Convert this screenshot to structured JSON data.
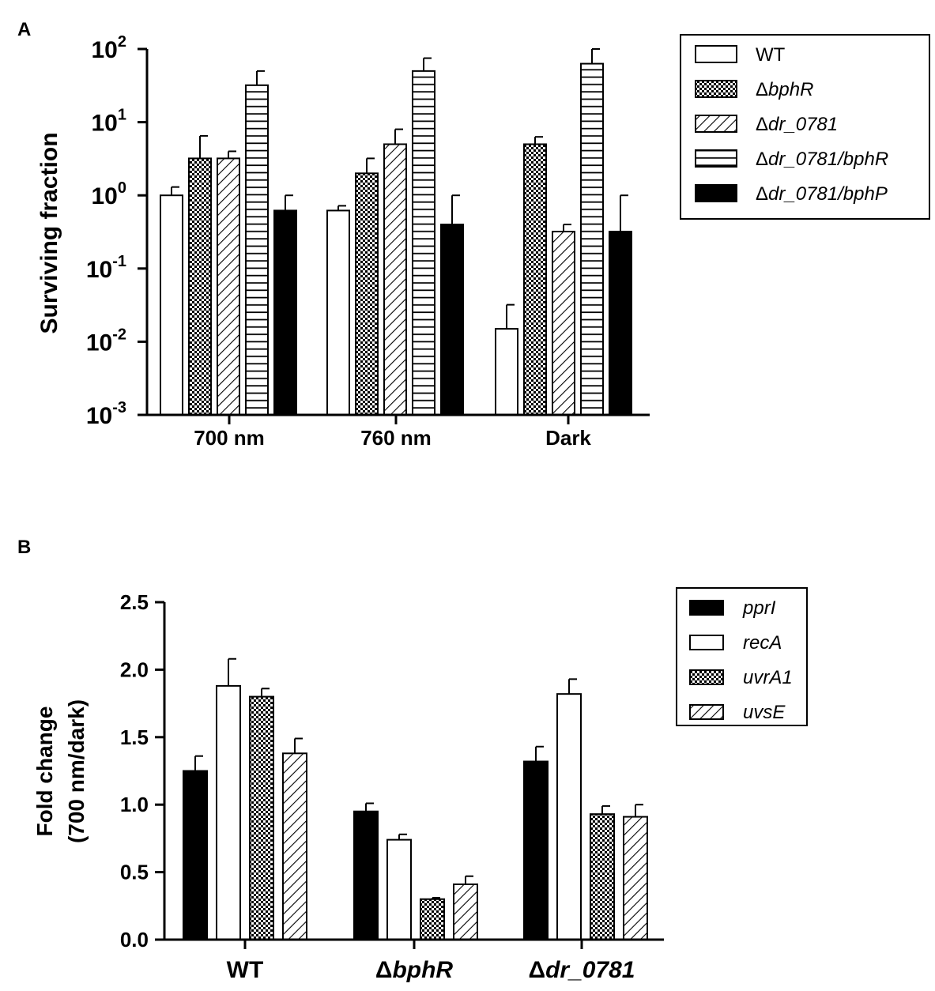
{
  "colors": {
    "ink": "#000000",
    "paper": "#ffffff"
  },
  "chart_data": [
    {
      "panel_label": "A",
      "type": "bar",
      "scale": "log",
      "ylabel": "Surviving fraction",
      "ylim": [
        0.001,
        100
      ],
      "y_ticks": [
        {
          "base": "10",
          "exp": "2",
          "value": 100
        },
        {
          "base": "10",
          "exp": "1",
          "value": 10
        },
        {
          "base": "10",
          "exp": "0",
          "value": 1
        },
        {
          "base": "10",
          "exp": "-1",
          "value": 0.1
        },
        {
          "base": "10",
          "exp": "-2",
          "value": 0.01
        },
        {
          "base": "10",
          "exp": "-3",
          "value": 0.001
        }
      ],
      "categories": [
        "700 nm",
        "760 nm",
        "Dark"
      ],
      "series": [
        {
          "name": "WT",
          "prefix": "",
          "italic_part": "",
          "pattern": "white",
          "values": [
            1.0,
            0.62,
            0.015
          ],
          "errors_upper": [
            1.3,
            0.72,
            0.032
          ]
        },
        {
          "name": "ΔbphR",
          "prefix": "Δ",
          "italic_part": "bphR",
          "pattern": "checker",
          "values": [
            3.2,
            2.0,
            5.0
          ],
          "errors_upper": [
            6.5,
            3.2,
            6.3
          ]
        },
        {
          "name": "Δdr_0781",
          "prefix": "Δ",
          "italic_part": "dr_0781",
          "pattern": "diag",
          "values": [
            3.2,
            5.0,
            0.32
          ],
          "errors_upper": [
            4.0,
            8.0,
            0.4
          ]
        },
        {
          "name": "Δdr_0781/bphR",
          "prefix": "Δ",
          "italic_part": "dr_0781/bphR",
          "pattern": "hlines",
          "values": [
            32,
            50,
            63
          ],
          "errors_upper": [
            50,
            75,
            100
          ]
        },
        {
          "name": "Δdr_0781/bphP",
          "prefix": "Δ",
          "italic_part": "dr_0781/bphP",
          "pattern": "black",
          "values": [
            0.62,
            0.4,
            0.32
          ],
          "errors_upper": [
            1.0,
            1.0,
            1.0
          ]
        }
      ]
    },
    {
      "panel_label": "B",
      "type": "bar",
      "scale": "linear",
      "ylabel_line1": "Fold change",
      "ylabel_line2": "(700 nm/dark)",
      "ylim": [
        0,
        2.5
      ],
      "y_ticks": [
        "0.0",
        "0.5",
        "1.0",
        "1.5",
        "2.0",
        "2.5"
      ],
      "categories": [
        {
          "prefix": "",
          "label": "WT",
          "italic": false
        },
        {
          "prefix": "Δ",
          "label": "bphR",
          "italic": true
        },
        {
          "prefix": "Δ",
          "label": "dr_0781",
          "italic": true
        }
      ],
      "series": [
        {
          "name": "pprI",
          "pattern": "black",
          "values": [
            1.25,
            0.95,
            1.32
          ],
          "errors_upper": [
            1.36,
            1.01,
            1.43
          ]
        },
        {
          "name": "recA",
          "pattern": "white",
          "values": [
            1.88,
            0.74,
            1.82
          ],
          "errors_upper": [
            2.08,
            0.78,
            1.93
          ]
        },
        {
          "name": "uvrA1",
          "pattern": "checker",
          "values": [
            1.8,
            0.3,
            0.93
          ],
          "errors_upper": [
            1.86,
            0.31,
            0.99
          ]
        },
        {
          "name": "uvsE",
          "pattern": "diag",
          "values": [
            1.38,
            0.41,
            0.91
          ],
          "errors_upper": [
            1.49,
            0.47,
            1.0
          ]
        }
      ]
    }
  ]
}
